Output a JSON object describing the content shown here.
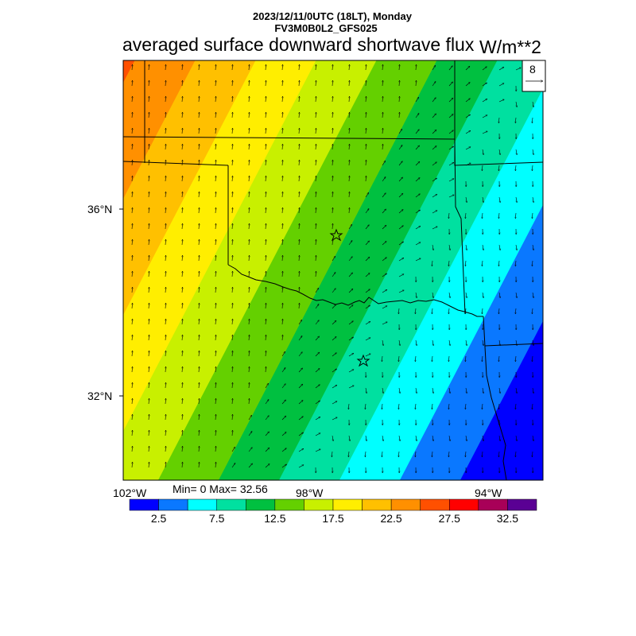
{
  "header": {
    "date_line": "2023/12/11/0UTC (18LT), Monday",
    "model_line": "FV3M0B0L2_GFS025",
    "title": "averaged surface downward shortwave flux",
    "units": "W/m**2"
  },
  "stats": {
    "minmax": "Min= 0 Max= 32.56"
  },
  "vector_legend": {
    "reference_value": "8"
  },
  "axes": {
    "lat_labels": [
      "36°N",
      "32°N"
    ],
    "lon_labels": [
      "102°W",
      "98°W",
      "94°W"
    ]
  },
  "colorbar": {
    "colors": [
      "#0000ff",
      "#0a78ff",
      "#00ffff",
      "#00e0a0",
      "#00c040",
      "#64d000",
      "#c8f000",
      "#ffee00",
      "#ffc000",
      "#ff9000",
      "#ff5000",
      "#ff0000",
      "#a80058",
      "#5a0094"
    ],
    "tick_labels": [
      "2.5",
      "7.5",
      "12.5",
      "17.5",
      "22.5",
      "27.5",
      "32.5"
    ]
  },
  "map": {
    "region": "Oklahoma / Texas",
    "markers": [
      "star-marker-oklahoma-city",
      "star-marker-dallas"
    ]
  }
}
